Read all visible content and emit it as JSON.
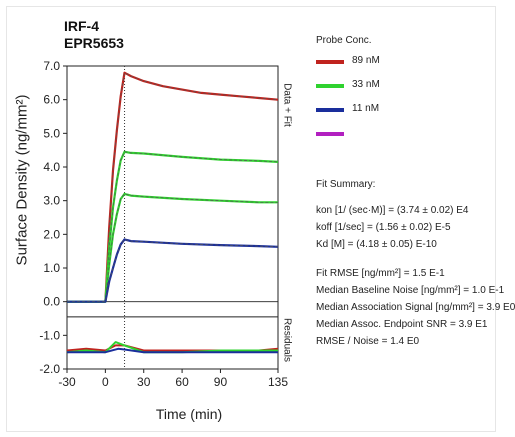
{
  "protein_name": "IRF-4",
  "antibody_clone": "EPR5653",
  "legend": {
    "title": "Probe Conc.",
    "items": [
      {
        "label": "89 nM",
        "color": "#c0231e"
      },
      {
        "label": "33 nM",
        "color": "#2fd22f"
      },
      {
        "label": "11 nM",
        "color": "#1a2e9c"
      },
      {
        "label": "",
        "color": "#b21fc0"
      }
    ]
  },
  "fit_summary": {
    "title": "Fit Summary:",
    "lines": [
      "kon  [1/ (sec·M)]  =  (3.74 ± 0.02) E4",
      "koff  [1/sec]  =  (1.56 ± 0.02) E-5",
      "Kd  [M]  =  (4.18 ± 0.05) E-10",
      "",
      "Fit RMSE [ng/mm²]  =  1.5 E-1",
      "Median Baseline Noise [ng/mm²]  =  1.0 E-1",
      "Median Association Signal [ng/mm²]  =  3.9 E0",
      "Median Assoc. Endpoint SNR  =  3.9 E1",
      "RMSE / Noise  =  1.4 E0"
    ]
  },
  "chart_data": {
    "type": "line",
    "title": "",
    "xlabel": "Time (min)",
    "ylabel": "Surface Density (ng/mm²)",
    "top_panel_label": "Data + Fit",
    "bottom_panel_label": "Residuals",
    "xlim": [
      -30,
      135
    ],
    "ylim": [
      -2.0,
      7.0
    ],
    "x_ticks": [
      -30,
      0,
      30,
      60,
      90,
      135
    ],
    "y_ticks": [
      "7.0",
      "6.0",
      "5.0",
      "4.0",
      "3.0",
      "2.0",
      "1.0",
      "0.0",
      "-1.0",
      "-2.0"
    ],
    "injection_end_min": 15,
    "series": [
      {
        "label": "89 nM",
        "color": "#c0231e",
        "points": [
          [
            -30,
            0
          ],
          [
            -10,
            0
          ],
          [
            0,
            0
          ],
          [
            3,
            2.2
          ],
          [
            6,
            3.9
          ],
          [
            9,
            5.1
          ],
          [
            12,
            6.1
          ],
          [
            15,
            6.8
          ],
          [
            20,
            6.7
          ],
          [
            30,
            6.55
          ],
          [
            45,
            6.4
          ],
          [
            60,
            6.3
          ],
          [
            75,
            6.2
          ],
          [
            90,
            6.15
          ],
          [
            105,
            6.1
          ],
          [
            120,
            6.05
          ],
          [
            135,
            6.0
          ]
        ]
      },
      {
        "label": "33 nM",
        "color": "#2fd22f",
        "points": [
          [
            -30,
            0
          ],
          [
            -10,
            0
          ],
          [
            0,
            0
          ],
          [
            3,
            1.6
          ],
          [
            6,
            2.8
          ],
          [
            9,
            3.6
          ],
          [
            12,
            4.2
          ],
          [
            15,
            4.45
          ],
          [
            20,
            4.42
          ],
          [
            30,
            4.4
          ],
          [
            60,
            4.3
          ],
          [
            90,
            4.22
          ],
          [
            120,
            4.18
          ],
          [
            135,
            4.15
          ]
        ]
      },
      {
        "label": "33 nM",
        "color": "#2fd22f",
        "points": [
          [
            -30,
            0
          ],
          [
            -10,
            0
          ],
          [
            0,
            0
          ],
          [
            3,
            1.1
          ],
          [
            6,
            2.0
          ],
          [
            9,
            2.6
          ],
          [
            12,
            3.05
          ],
          [
            15,
            3.2
          ],
          [
            20,
            3.15
          ],
          [
            30,
            3.12
          ],
          [
            60,
            3.05
          ],
          [
            90,
            3.0
          ],
          [
            120,
            2.95
          ],
          [
            135,
            2.95
          ]
        ]
      },
      {
        "label": "11 nM",
        "color": "#1a2e9c",
        "points": [
          [
            -30,
            0
          ],
          [
            -10,
            0
          ],
          [
            0,
            0
          ],
          [
            3,
            0.6
          ],
          [
            6,
            1.0
          ],
          [
            9,
            1.4
          ],
          [
            12,
            1.7
          ],
          [
            15,
            1.85
          ],
          [
            20,
            1.8
          ],
          [
            30,
            1.78
          ],
          [
            60,
            1.72
          ],
          [
            90,
            1.68
          ],
          [
            120,
            1.65
          ],
          [
            135,
            1.63
          ]
        ]
      }
    ],
    "residual_panel_ylim": [
      -2.0,
      -1.0
    ],
    "residuals": [
      {
        "color": "#c0231e",
        "points": [
          [
            -30,
            -1.45
          ],
          [
            -15,
            -1.4
          ],
          [
            0,
            -1.45
          ],
          [
            8,
            -1.3
          ],
          [
            15,
            -1.3
          ],
          [
            30,
            -1.45
          ],
          [
            60,
            -1.45
          ],
          [
            90,
            -1.45
          ],
          [
            120,
            -1.45
          ],
          [
            135,
            -1.4
          ]
        ]
      },
      {
        "color": "#2fd22f",
        "points": [
          [
            -30,
            -1.5
          ],
          [
            -15,
            -1.45
          ],
          [
            0,
            -1.5
          ],
          [
            8,
            -1.2
          ],
          [
            15,
            -1.3
          ],
          [
            30,
            -1.5
          ],
          [
            60,
            -1.5
          ],
          [
            90,
            -1.45
          ],
          [
            120,
            -1.45
          ],
          [
            135,
            -1.45
          ]
        ]
      },
      {
        "color": "#1a2e9c",
        "points": [
          [
            -30,
            -1.5
          ],
          [
            0,
            -1.5
          ],
          [
            10,
            -1.4
          ],
          [
            15,
            -1.42
          ],
          [
            30,
            -1.5
          ],
          [
            135,
            -1.5
          ]
        ]
      }
    ]
  }
}
